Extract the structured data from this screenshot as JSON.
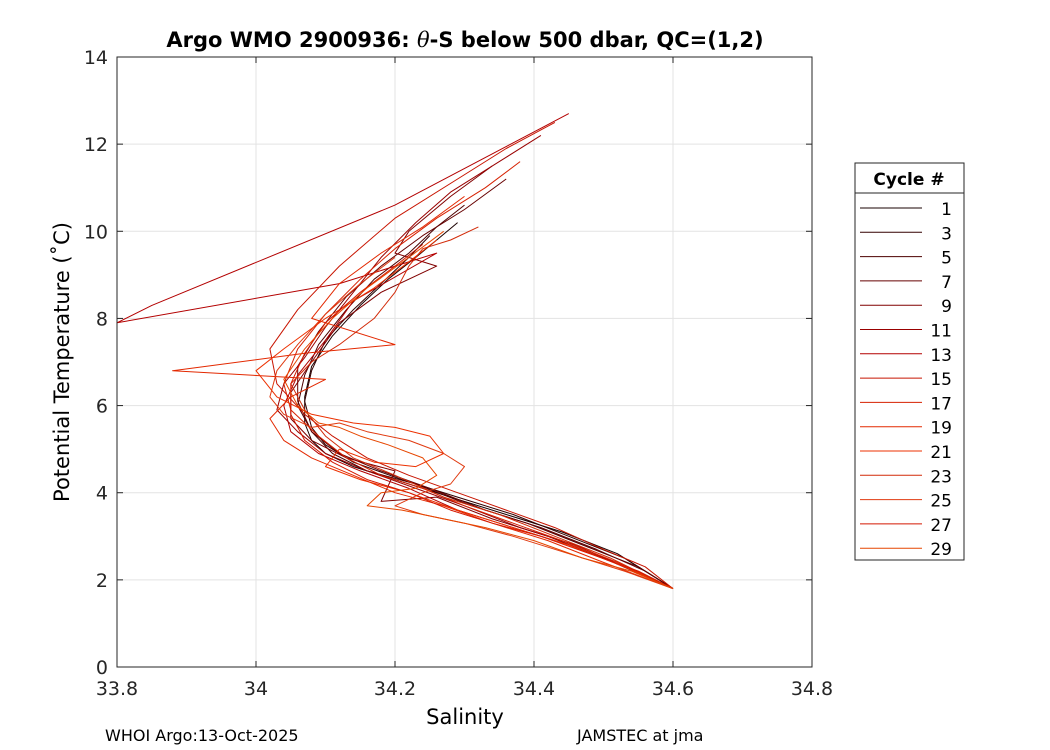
{
  "chart_data": {
    "type": "line",
    "title": "Argo WMO 2900936: θ-S below 500 dbar,  QC=(1,2)",
    "title_prefix": "Argo WMO 2900936: ",
    "title_theta": "θ",
    "title_suffix": "-S below 500 dbar,  QC=(1,2)",
    "xlabel": "Salinity",
    "ylabel": "Potential Temperature (˚C)",
    "xlim": [
      33.8,
      34.8
    ],
    "ylim": [
      0,
      14
    ],
    "x_ticks": [
      33.8,
      34,
      34.2,
      34.4,
      34.6,
      34.8
    ],
    "x_tick_labels": [
      "33.8",
      "34",
      "34.2",
      "34.4",
      "34.6",
      "34.8"
    ],
    "y_ticks": [
      0,
      2,
      4,
      6,
      8,
      10,
      12,
      14
    ],
    "y_tick_labels": [
      "0",
      "2",
      "4",
      "6",
      "8",
      "10",
      "12",
      "14"
    ],
    "grid": true,
    "legend_title": "Cycle #",
    "legend_position": "right",
    "series": [
      {
        "name": "1",
        "color": "#1a0000",
        "x": [
          34.29,
          34.26,
          34.23,
          34.19,
          34.15,
          34.11,
          34.08,
          34.07,
          34.07,
          34.08,
          34.1,
          34.14,
          34.2,
          34.28,
          34.36,
          34.44,
          34.52,
          34.6
        ],
        "y": [
          10.2,
          9.8,
          9.4,
          8.9,
          8.3,
          7.6,
          6.9,
          6.2,
          5.6,
          5.2,
          4.9,
          4.6,
          4.3,
          3.9,
          3.5,
          3.1,
          2.6,
          1.8
        ]
      },
      {
        "name": "3",
        "color": "#330000",
        "x": [
          34.25,
          34.22,
          34.18,
          34.14,
          34.1,
          34.08,
          34.07,
          34.08,
          34.1,
          34.14,
          34.21,
          34.29,
          34.37,
          34.45,
          34.53,
          34.6
        ],
        "y": [
          9.9,
          9.4,
          8.8,
          8.2,
          7.5,
          6.8,
          6.1,
          5.5,
          5.1,
          4.7,
          4.3,
          3.9,
          3.5,
          3.0,
          2.5,
          1.8
        ]
      },
      {
        "name": "5",
        "color": "#4d0000",
        "x": [
          34.3,
          34.26,
          34.22,
          34.17,
          34.13,
          34.09,
          34.07,
          34.06,
          34.08,
          34.11,
          34.16,
          34.23,
          34.31,
          34.39,
          34.47,
          34.55,
          34.6
        ],
        "y": [
          10.6,
          10.1,
          9.5,
          8.9,
          8.2,
          7.4,
          6.7,
          6.0,
          5.4,
          4.9,
          4.5,
          4.2,
          3.7,
          3.3,
          2.8,
          2.3,
          1.8
        ]
      },
      {
        "name": "7",
        "color": "#660000",
        "x": [
          34.36,
          34.3,
          34.24,
          34.18,
          34.13,
          34.09,
          34.06,
          34.06,
          34.08,
          34.12,
          34.18,
          34.25,
          34.33,
          34.41,
          34.49,
          34.56,
          34.6
        ],
        "y": [
          11.2,
          10.5,
          9.9,
          9.2,
          8.5,
          7.7,
          6.9,
          6.1,
          5.4,
          4.9,
          4.5,
          4.1,
          3.6,
          3.2,
          2.7,
          2.2,
          1.8
        ]
      },
      {
        "name": "9",
        "color": "#800000",
        "x": [
          34.34,
          34.28,
          34.22,
          34.2,
          34.26,
          34.18,
          34.12,
          34.08,
          34.05,
          34.05,
          34.08,
          34.13,
          34.2,
          34.18,
          34.26,
          34.34,
          34.42,
          34.5,
          34.6
        ],
        "y": [
          11.5,
          10.8,
          10.0,
          9.5,
          9.2,
          8.6,
          7.9,
          7.0,
          6.3,
          5.7,
          5.2,
          4.8,
          4.5,
          3.8,
          3.9,
          3.4,
          3.0,
          2.5,
          1.8
        ]
      },
      {
        "name": "11",
        "color": "#990000",
        "x": [
          34.41,
          34.35,
          34.28,
          34.23,
          34.18,
          34.14,
          34.1,
          34.07,
          34.04,
          34.03,
          34.06,
          34.1,
          34.16,
          34.23,
          34.3,
          34.38,
          34.46,
          34.53,
          34.6
        ],
        "y": [
          12.2,
          11.6,
          10.9,
          10.2,
          9.4,
          8.6,
          7.8,
          7.1,
          6.5,
          5.9,
          5.4,
          4.9,
          4.5,
          4.1,
          3.7,
          3.2,
          2.8,
          2.3,
          1.8
        ]
      },
      {
        "name": "13",
        "color": "#b30000",
        "x": [
          34.45,
          34.2,
          33.85,
          33.8,
          34.12,
          34.26,
          34.14,
          34.1,
          34.06,
          34.04,
          34.05,
          34.09,
          34.15,
          34.22,
          34.29,
          34.37,
          34.45,
          34.53,
          34.6
        ],
        "y": [
          12.7,
          10.6,
          8.3,
          7.9,
          8.8,
          9.5,
          8.4,
          7.5,
          6.7,
          6.0,
          5.4,
          4.9,
          4.5,
          4.1,
          3.6,
          3.2,
          2.8,
          2.3,
          1.8
        ]
      },
      {
        "name": "15",
        "color": "#c81400",
        "x": [
          34.43,
          34.36,
          34.29,
          34.2,
          34.12,
          34.06,
          34.02,
          34.03,
          34.07,
          34.11,
          34.16,
          34.22,
          34.29,
          34.36,
          34.43,
          34.5,
          34.56,
          34.6
        ],
        "y": [
          12.5,
          11.9,
          11.2,
          10.3,
          9.2,
          8.2,
          7.3,
          6.5,
          5.8,
          5.3,
          4.8,
          4.4,
          4.0,
          3.6,
          3.2,
          2.7,
          2.3,
          1.8
        ]
      },
      {
        "name": "17",
        "color": "#d62000",
        "x": [
          34.38,
          34.33,
          34.26,
          34.2,
          34.15,
          34.1,
          34.06,
          34.04,
          34.05,
          34.09,
          34.13,
          34.18,
          34.24,
          34.3,
          34.37,
          34.44,
          34.52,
          34.6
        ],
        "y": [
          11.6,
          11.0,
          10.3,
          9.6,
          8.9,
          8.1,
          7.3,
          6.5,
          5.9,
          5.3,
          4.8,
          4.4,
          4.1,
          3.7,
          3.3,
          2.9,
          2.4,
          1.8
        ]
      },
      {
        "name": "19",
        "color": "#e32800",
        "x": [
          34.3,
          34.24,
          34.18,
          34.12,
          34.08,
          34.2,
          34.07,
          33.88,
          34.1,
          34.05,
          34.02,
          34.04,
          34.08,
          34.14,
          34.2,
          34.27,
          34.34,
          34.42,
          34.5,
          34.6
        ],
        "y": [
          10.8,
          10.1,
          9.5,
          8.8,
          8.0,
          7.4,
          7.2,
          6.8,
          6.6,
          6.2,
          5.7,
          5.2,
          4.8,
          4.4,
          4.0,
          3.7,
          3.3,
          2.9,
          2.4,
          1.8
        ]
      },
      {
        "name": "21",
        "color": "#ec3000",
        "x": [
          34.26,
          34.22,
          34.17,
          34.1,
          34.04,
          34.0,
          34.03,
          34.08,
          34.14,
          34.2,
          34.25,
          34.27,
          34.23,
          34.17,
          34.12,
          34.1,
          34.15,
          34.22,
          34.29,
          34.37,
          34.45,
          34.53,
          34.6
        ],
        "y": [
          9.8,
          9.3,
          8.7,
          8.0,
          7.3,
          6.8,
          6.2,
          5.8,
          5.6,
          5.5,
          5.3,
          4.9,
          4.6,
          4.7,
          5.0,
          4.6,
          4.3,
          4.0,
          3.6,
          3.2,
          2.8,
          2.3,
          1.8
        ]
      },
      {
        "name": "23",
        "color": "#d22a08",
        "x": [
          34.32,
          34.28,
          34.24,
          34.22,
          34.2,
          34.17,
          34.12,
          34.08,
          34.05,
          34.07,
          34.1,
          34.14,
          34.2,
          34.27,
          34.35,
          34.43,
          34.51,
          34.6
        ],
        "y": [
          10.1,
          9.8,
          9.6,
          9.2,
          8.6,
          8.0,
          7.4,
          7.0,
          6.5,
          5.9,
          5.3,
          4.8,
          4.4,
          3.9,
          3.5,
          3.0,
          2.5,
          1.8
        ]
      },
      {
        "name": "25",
        "color": "#e03a10",
        "x": [
          34.2,
          34.15,
          34.1,
          34.06,
          34.03,
          34.02,
          34.04,
          34.08,
          34.12,
          34.16,
          34.22,
          34.27,
          34.3,
          34.28,
          34.24,
          34.2,
          34.24,
          34.3,
          34.37,
          34.45,
          34.53,
          34.6
        ],
        "y": [
          9.4,
          8.8,
          8.1,
          7.4,
          6.8,
          6.2,
          5.8,
          5.5,
          5.6,
          5.4,
          5.2,
          4.9,
          4.6,
          4.2,
          4.0,
          3.7,
          3.5,
          3.3,
          3.0,
          2.6,
          2.2,
          1.8
        ]
      },
      {
        "name": "27",
        "color": "#d41800",
        "x": [
          34.24,
          34.2,
          34.15,
          34.1,
          34.07,
          34.05,
          34.05,
          34.07,
          34.11,
          34.16,
          34.22,
          34.28,
          34.34,
          34.41,
          34.48,
          34.55,
          34.6
        ],
        "y": [
          9.7,
          9.2,
          8.6,
          7.9,
          7.2,
          6.5,
          5.8,
          5.2,
          4.7,
          4.3,
          4.0,
          3.6,
          3.3,
          3.0,
          2.6,
          2.2,
          1.8
        ]
      },
      {
        "name": "29",
        "color": "#e64600",
        "x": [
          34.27,
          34.22,
          34.16,
          34.11,
          34.07,
          34.04,
          34.06,
          34.09,
          34.12,
          34.15,
          34.19,
          34.24,
          34.26,
          34.23,
          34.18,
          34.16,
          34.21,
          34.27,
          34.33,
          34.4,
          34.47,
          34.54,
          34.6
        ],
        "y": [
          10.0,
          9.4,
          8.7,
          8.0,
          7.3,
          6.6,
          6.0,
          5.6,
          5.5,
          5.3,
          5.1,
          4.8,
          4.4,
          4.1,
          4.0,
          3.7,
          3.6,
          3.4,
          3.2,
          2.9,
          2.5,
          2.2,
          1.8
        ]
      }
    ]
  },
  "footer": {
    "left": "WHOI Argo:13-Oct-2025",
    "right": "JAMSTEC at jma"
  }
}
